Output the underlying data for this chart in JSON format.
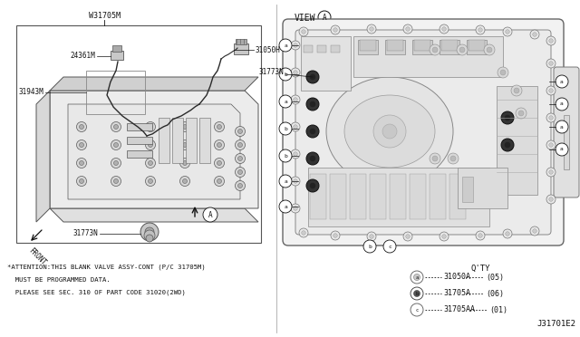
{
  "bg_color": "#ffffff",
  "part_number_top": "W31705M",
  "qty_title": "Q'TY",
  "qty_items": [
    {
      "symbol": "a",
      "part": "31050A",
      "qty": "(05)"
    },
    {
      "symbol": "b",
      "part": "31705A",
      "qty": "(06)"
    },
    {
      "symbol": "c",
      "part": "31705AA",
      "qty": "(01)"
    }
  ],
  "attention_lines": [
    "*ATTENTION:THIS BLANK VALVE ASSY-CONT (P/C 31705M)",
    "  MUST BE PROGRAMMED DATA.",
    "  PLEASE SEE SEC. 310 OF PART CODE 31020(2WD)"
  ],
  "diagram_id": "J31701E2",
  "lc": "#c8c8c8",
  "dc": "#888888",
  "line_color": "#555555",
  "label_color": "#111111"
}
